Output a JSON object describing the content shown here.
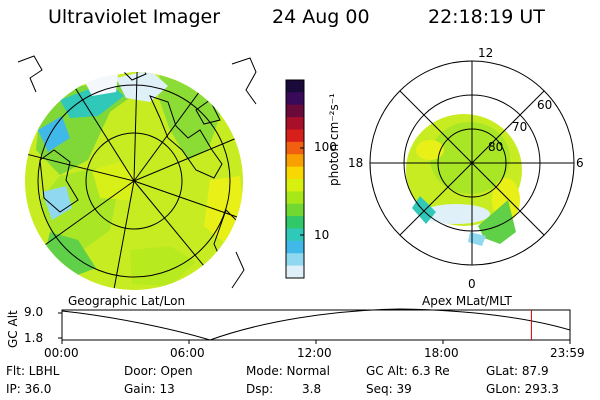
{
  "header": {
    "instrument": "Ultraviolet Imager",
    "date": "24 Aug 00",
    "time": "22:18:19 UT"
  },
  "colorbar": {
    "unit_label": "photon cm⁻²s⁻¹",
    "ticks": [
      "100",
      "10"
    ],
    "colors": [
      "#1a0a3a",
      "#3a0a5a",
      "#6a0a3a",
      "#a8102a",
      "#d8201a",
      "#f06010",
      "#f8a000",
      "#f8d800",
      "#d8f010",
      "#a8e818",
      "#70d830",
      "#30c868",
      "#30c8b8",
      "#40b8e8",
      "#90d8f0",
      "#e0f0f8"
    ]
  },
  "panels": {
    "left_label": "Geographic Lat/Lon",
    "right_label": "Apex MLat/MLT"
  },
  "polar": {
    "mlt_labels": {
      "top": "12",
      "left": "18",
      "right": "6",
      "bottom": "0"
    },
    "lat_labels": [
      "60",
      "70",
      "80"
    ]
  },
  "timeline": {
    "axis_label": "GC Alt",
    "y_ticks": [
      "9.0",
      "1.8"
    ],
    "x_ticks": [
      "00:00",
      "06:00",
      "12:00",
      "18:00",
      "23:59"
    ],
    "marker_color": "#d00000",
    "marker_time_fraction": 0.924
  },
  "info": {
    "flt": "Flt: LBHL",
    "ip": "IP: 36.0",
    "door": "Door: Open",
    "gain": "Gain: 13",
    "mode": "Mode: Normal",
    "dsp": "Dsp:",
    "dsp_val": "3.8",
    "gcalt": "GC Alt: 6.3 Re",
    "seq": "Seq: 39",
    "glat": "GLat:  87.9",
    "glon": "GLon: 293.3"
  }
}
